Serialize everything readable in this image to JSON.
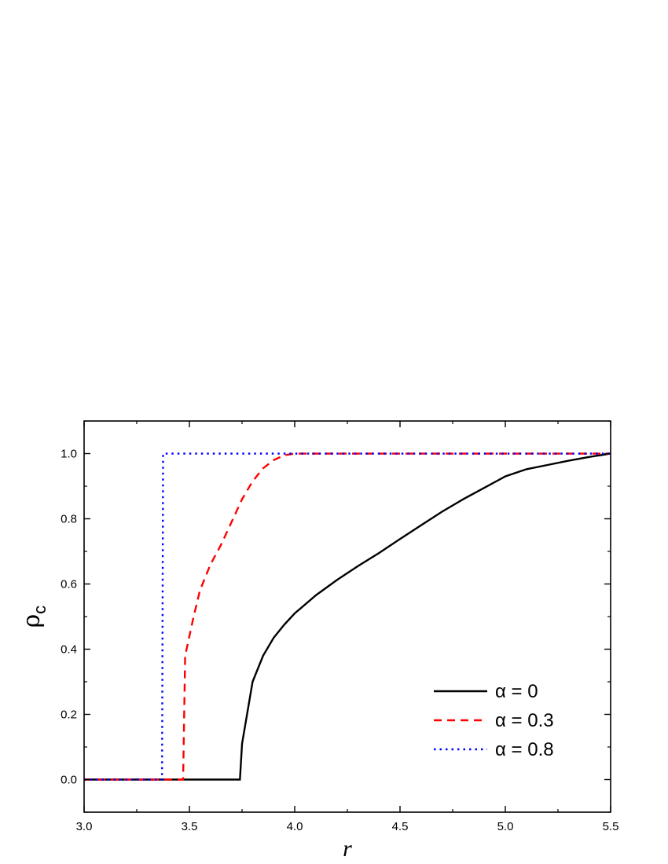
{
  "chart_data": {
    "type": "line",
    "title": "",
    "xlabel": "r",
    "ylabel": {
      "main": "ρ",
      "subscript": "c"
    },
    "xlim": [
      3.0,
      5.5
    ],
    "ylim": [
      -0.1,
      1.1
    ],
    "xticks": [
      "3.0",
      "3.5",
      "4.0",
      "4.5",
      "5.0",
      "5.5"
    ],
    "yticks": [
      "0.0",
      "0.2",
      "0.4",
      "0.6",
      "0.8",
      "1.0"
    ],
    "grid": false,
    "legend_position": "lower-right",
    "series": [
      {
        "name": "α = 0",
        "color": "#000000",
        "style": "solid",
        "points": [
          [
            3.0,
            0.0
          ],
          [
            3.74,
            0.0
          ],
          [
            3.75,
            0.11
          ],
          [
            3.8,
            0.3
          ],
          [
            3.85,
            0.38
          ],
          [
            3.9,
            0.435
          ],
          [
            3.95,
            0.475
          ],
          [
            4.0,
            0.51
          ],
          [
            4.1,
            0.565
          ],
          [
            4.2,
            0.612
          ],
          [
            4.3,
            0.655
          ],
          [
            4.4,
            0.695
          ],
          [
            4.5,
            0.738
          ],
          [
            4.6,
            0.78
          ],
          [
            4.7,
            0.822
          ],
          [
            4.8,
            0.86
          ],
          [
            4.9,
            0.895
          ],
          [
            5.0,
            0.93
          ],
          [
            5.1,
            0.952
          ],
          [
            5.2,
            0.965
          ],
          [
            5.3,
            0.978
          ],
          [
            5.4,
            0.99
          ],
          [
            5.5,
            1.0
          ]
        ]
      },
      {
        "name": "α = 0.3",
        "color": "#ff0000",
        "style": "dashed",
        "points": [
          [
            3.0,
            0.0
          ],
          [
            3.47,
            0.0
          ],
          [
            3.48,
            0.38
          ],
          [
            3.52,
            0.5
          ],
          [
            3.55,
            0.58
          ],
          [
            3.6,
            0.66
          ],
          [
            3.65,
            0.72
          ],
          [
            3.7,
            0.79
          ],
          [
            3.75,
            0.86
          ],
          [
            3.8,
            0.915
          ],
          [
            3.85,
            0.955
          ],
          [
            3.9,
            0.98
          ],
          [
            3.95,
            0.995
          ],
          [
            4.0,
            1.0
          ],
          [
            5.5,
            1.0
          ]
        ]
      },
      {
        "name": "α = 0.8",
        "color": "#0000ff",
        "style": "dotted",
        "points": [
          [
            3.0,
            0.0
          ],
          [
            3.37,
            0.0
          ],
          [
            3.375,
            1.0
          ],
          [
            5.5,
            1.0
          ]
        ]
      }
    ]
  }
}
